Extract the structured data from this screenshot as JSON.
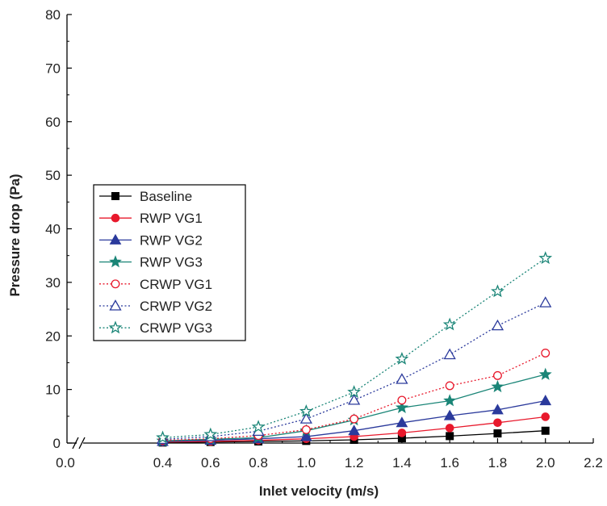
{
  "chart_data": {
    "type": "line",
    "title": "",
    "xlabel": "Inlet velocity (m/s)",
    "ylabel": "Pressure drop (Pa)",
    "xlim": [
      0.0,
      2.2
    ],
    "ylim": [
      0,
      80
    ],
    "x_ticks": [
      "0.0",
      "0.4",
      "0.6",
      "0.8",
      "1.0",
      "1.2",
      "1.4",
      "1.6",
      "1.8",
      "2.0",
      "2.2"
    ],
    "y_ticks": [
      "0",
      "10",
      "20",
      "30",
      "40",
      "50",
      "60",
      "70",
      "80"
    ],
    "axis_break": "between 0.0 and 0.4",
    "grid": false,
    "legend_position": "middle-left",
    "x": [
      0.4,
      0.6,
      0.8,
      1.0,
      1.2,
      1.4,
      1.6,
      1.8,
      2.0
    ],
    "series": [
      {
        "name": "Baseline",
        "values": [
          0.1,
          0.2,
          0.3,
          0.4,
          0.6,
          0.9,
          1.3,
          1.8,
          2.3
        ],
        "color": "#000000",
        "marker": "square",
        "filled": true,
        "dash": "solid"
      },
      {
        "name": "RWP VG1",
        "values": [
          0.2,
          0.3,
          0.5,
          0.8,
          1.2,
          1.9,
          2.8,
          3.8,
          4.9
        ],
        "color": "#e8192c",
        "marker": "circle",
        "filled": true,
        "dash": "solid"
      },
      {
        "name": "RWP VG2",
        "values": [
          0.3,
          0.5,
          0.8,
          1.2,
          2.3,
          3.8,
          5.1,
          6.2,
          7.9
        ],
        "color": "#2b3a9c",
        "marker": "triangle",
        "filled": true,
        "dash": "solid"
      },
      {
        "name": "RWP VG3",
        "values": [
          0.4,
          0.7,
          1.0,
          2.3,
          4.3,
          6.6,
          7.9,
          10.5,
          12.8
        ],
        "color": "#1a8577",
        "marker": "star",
        "filled": true,
        "dash": "solid"
      },
      {
        "name": "CRWP VG1",
        "values": [
          0.5,
          0.8,
          1.4,
          2.5,
          4.5,
          8.0,
          10.7,
          12.6,
          16.8
        ],
        "color": "#e8192c",
        "marker": "circle",
        "filled": false,
        "dash": "dotted"
      },
      {
        "name": "CRWP VG2",
        "values": [
          0.7,
          1.2,
          2.2,
          4.5,
          8.0,
          11.9,
          16.5,
          21.9,
          26.2
        ],
        "color": "#2b3a9c",
        "marker": "triangle",
        "filled": false,
        "dash": "dotted"
      },
      {
        "name": "CRWP VG3",
        "values": [
          1.0,
          1.6,
          3.0,
          5.9,
          9.5,
          15.7,
          22.1,
          28.3,
          34.5
        ],
        "color": "#1a8577",
        "marker": "star",
        "filled": false,
        "dash": "dotted"
      }
    ]
  }
}
